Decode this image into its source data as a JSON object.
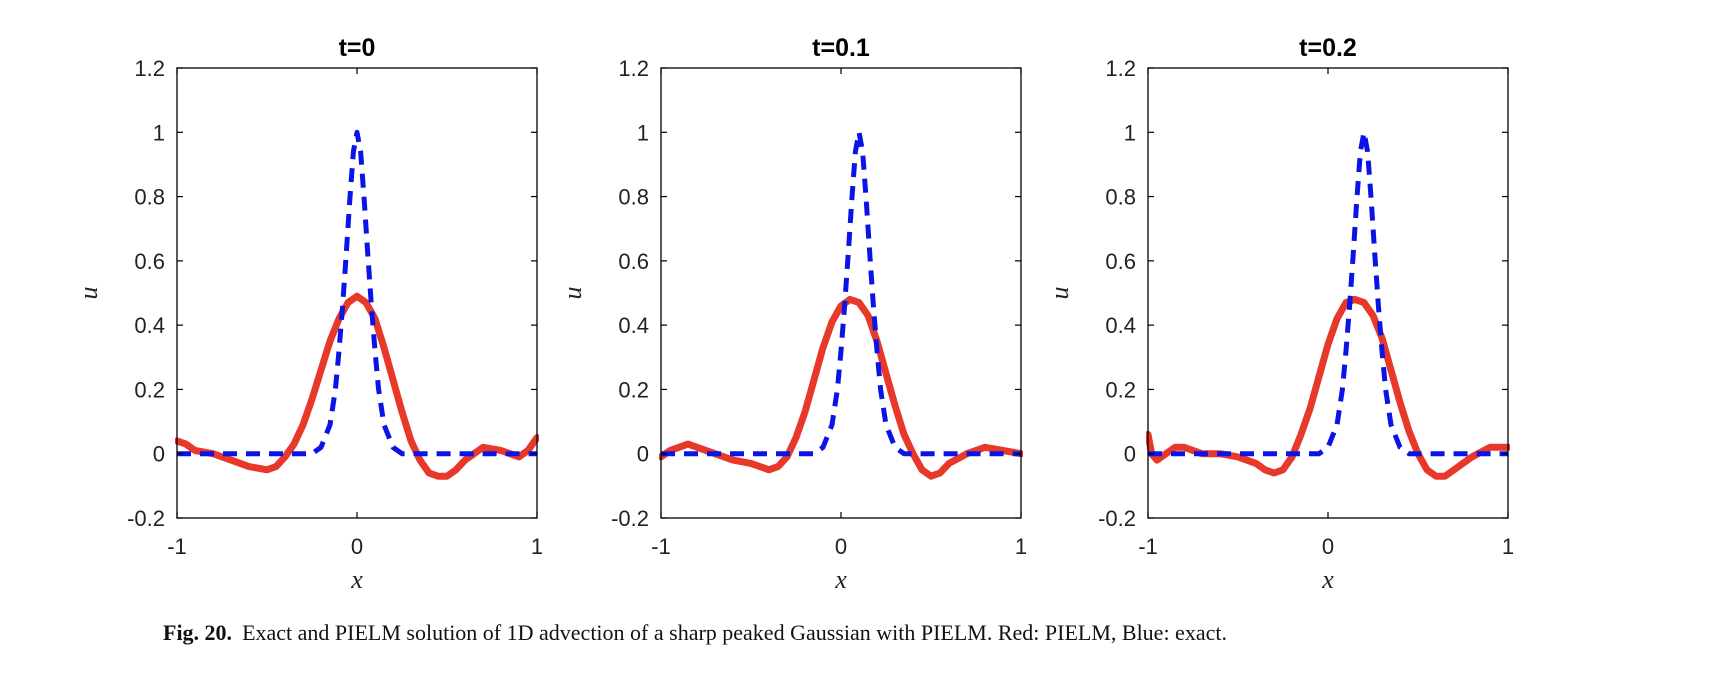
{
  "caption": {
    "label": "Fig. 20.",
    "text": "Exact and PIELM solution of 1D advection of a sharp peaked Gaussian with PIELM. Red: PIELM, Blue: exact."
  },
  "colors": {
    "pielm": "#e8382a",
    "exact": "#0a14e6",
    "axis": "#000000"
  },
  "chart_data": [
    {
      "type": "line",
      "title": "t=0",
      "xlabel": "x",
      "ylabel": "u",
      "xlim": [
        -1,
        1
      ],
      "ylim": [
        -0.2,
        1.2
      ],
      "xticks": [
        -1,
        0,
        1
      ],
      "xtick_labels": [
        "-1",
        "0",
        "1"
      ],
      "yticks": [
        -0.2,
        0,
        0.2,
        0.4,
        0.6,
        0.8,
        1,
        1.2
      ],
      "ytick_labels": [
        "-0.2",
        "0",
        "0.2",
        "0.4",
        "0.6",
        "0.8",
        "1",
        "1.2"
      ],
      "grid": false,
      "series": [
        {
          "style": "solid",
          "x": [
            -1,
            -0.95,
            -0.9,
            -0.8,
            -0.7,
            -0.6,
            -0.5,
            -0.45,
            -0.4,
            -0.35,
            -0.3,
            -0.25,
            -0.2,
            -0.15,
            -0.1,
            -0.05,
            0,
            0.05,
            0.1,
            0.15,
            0.2,
            0.25,
            0.3,
            0.35,
            0.4,
            0.45,
            0.5,
            0.55,
            0.6,
            0.7,
            0.8,
            0.9,
            0.95,
            1
          ],
          "y": [
            0.04,
            0.03,
            0.01,
            0,
            -0.02,
            -0.04,
            -0.05,
            -0.04,
            -0.01,
            0.03,
            0.09,
            0.17,
            0.26,
            0.35,
            0.42,
            0.47,
            0.49,
            0.47,
            0.42,
            0.33,
            0.23,
            0.13,
            0.04,
            -0.02,
            -0.06,
            -0.07,
            -0.07,
            -0.05,
            -0.02,
            0.02,
            0.01,
            -0.01,
            0.01,
            0.05
          ]
        },
        {
          "style": "dashed",
          "x": [
            -1,
            -0.25,
            -0.2,
            -0.15,
            -0.12,
            -0.1,
            -0.08,
            -0.06,
            -0.04,
            -0.02,
            0,
            0.02,
            0.04,
            0.06,
            0.08,
            0.1,
            0.12,
            0.15,
            0.2,
            0.25,
            1
          ],
          "y": [
            0,
            0,
            0.02,
            0.09,
            0.2,
            0.32,
            0.46,
            0.62,
            0.79,
            0.94,
            1.0,
            0.94,
            0.79,
            0.62,
            0.46,
            0.32,
            0.2,
            0.09,
            0.02,
            0,
            0
          ]
        }
      ]
    },
    {
      "type": "line",
      "title": "t=0.1",
      "xlabel": "x",
      "ylabel": "u",
      "xlim": [
        -1,
        1
      ],
      "ylim": [
        -0.2,
        1.2
      ],
      "xticks": [
        -1,
        0,
        1
      ],
      "xtick_labels": [
        "-1",
        "0",
        "1"
      ],
      "yticks": [
        -0.2,
        0,
        0.2,
        0.4,
        0.6,
        0.8,
        1,
        1.2
      ],
      "ytick_labels": [
        "-0.2",
        "0",
        "0.2",
        "0.4",
        "0.6",
        "0.8",
        "1",
        "1.2"
      ],
      "grid": false,
      "series": [
        {
          "style": "solid",
          "x": [
            -1,
            -0.95,
            -0.9,
            -0.85,
            -0.8,
            -0.7,
            -0.6,
            -0.5,
            -0.4,
            -0.35,
            -0.3,
            -0.25,
            -0.2,
            -0.15,
            -0.1,
            -0.05,
            0,
            0.05,
            0.1,
            0.15,
            0.2,
            0.25,
            0.3,
            0.35,
            0.4,
            0.45,
            0.5,
            0.55,
            0.6,
            0.7,
            0.8,
            0.9,
            1
          ],
          "y": [
            -0.01,
            0.01,
            0.02,
            0.03,
            0.02,
            0,
            -0.02,
            -0.03,
            -0.05,
            -0.04,
            -0.01,
            0.05,
            0.13,
            0.23,
            0.33,
            0.41,
            0.46,
            0.48,
            0.47,
            0.43,
            0.35,
            0.25,
            0.15,
            0.06,
            0,
            -0.05,
            -0.07,
            -0.06,
            -0.03,
            0,
            0.02,
            0.01,
            0
          ]
        },
        {
          "style": "dashed",
          "x": [
            -1,
            -0.15,
            -0.1,
            -0.05,
            -0.02,
            0,
            0.02,
            0.04,
            0.06,
            0.08,
            0.1,
            0.12,
            0.14,
            0.16,
            0.18,
            0.2,
            0.22,
            0.25,
            0.3,
            0.35,
            1
          ],
          "y": [
            0,
            0,
            0.02,
            0.09,
            0.2,
            0.32,
            0.46,
            0.62,
            0.79,
            0.94,
            1.0,
            0.94,
            0.79,
            0.62,
            0.46,
            0.32,
            0.2,
            0.09,
            0.02,
            0,
            0
          ]
        }
      ]
    },
    {
      "type": "line",
      "title": "t=0.2",
      "xlabel": "x",
      "ylabel": "u",
      "xlim": [
        -1,
        1
      ],
      "ylim": [
        -0.2,
        1.2
      ],
      "xticks": [
        -1,
        0,
        1
      ],
      "xtick_labels": [
        "-1",
        "0",
        "1"
      ],
      "yticks": [
        -0.2,
        0,
        0.2,
        0.4,
        0.6,
        0.8,
        1,
        1.2
      ],
      "ytick_labels": [
        "-0.2",
        "0",
        "0.2",
        "0.4",
        "0.6",
        "0.8",
        "1",
        "1.2"
      ],
      "grid": false,
      "series": [
        {
          "style": "solid",
          "x": [
            -1,
            -0.98,
            -0.95,
            -0.9,
            -0.85,
            -0.8,
            -0.7,
            -0.6,
            -0.5,
            -0.4,
            -0.35,
            -0.3,
            -0.25,
            -0.2,
            -0.15,
            -0.1,
            -0.05,
            0,
            0.05,
            0.1,
            0.15,
            0.2,
            0.25,
            0.3,
            0.35,
            0.4,
            0.45,
            0.5,
            0.55,
            0.6,
            0.65,
            0.7,
            0.8,
            0.9,
            1
          ],
          "y": [
            0.06,
            0,
            -0.02,
            0,
            0.02,
            0.02,
            0,
            0,
            -0.01,
            -0.03,
            -0.05,
            -0.06,
            -0.05,
            -0.01,
            0.06,
            0.14,
            0.24,
            0.34,
            0.42,
            0.47,
            0.48,
            0.47,
            0.43,
            0.36,
            0.26,
            0.16,
            0.07,
            0,
            -0.05,
            -0.07,
            -0.07,
            -0.05,
            -0.01,
            0.02,
            0.02
          ]
        },
        {
          "style": "dashed",
          "x": [
            -1,
            -0.05,
            0,
            0.05,
            0.08,
            0.1,
            0.12,
            0.14,
            0.16,
            0.18,
            0.2,
            0.22,
            0.24,
            0.26,
            0.28,
            0.3,
            0.32,
            0.35,
            0.4,
            0.45,
            1
          ],
          "y": [
            0,
            0,
            0.02,
            0.09,
            0.2,
            0.32,
            0.46,
            0.62,
            0.79,
            0.94,
            1.0,
            0.94,
            0.79,
            0.62,
            0.46,
            0.32,
            0.2,
            0.09,
            0.02,
            0,
            0
          ]
        }
      ]
    }
  ]
}
